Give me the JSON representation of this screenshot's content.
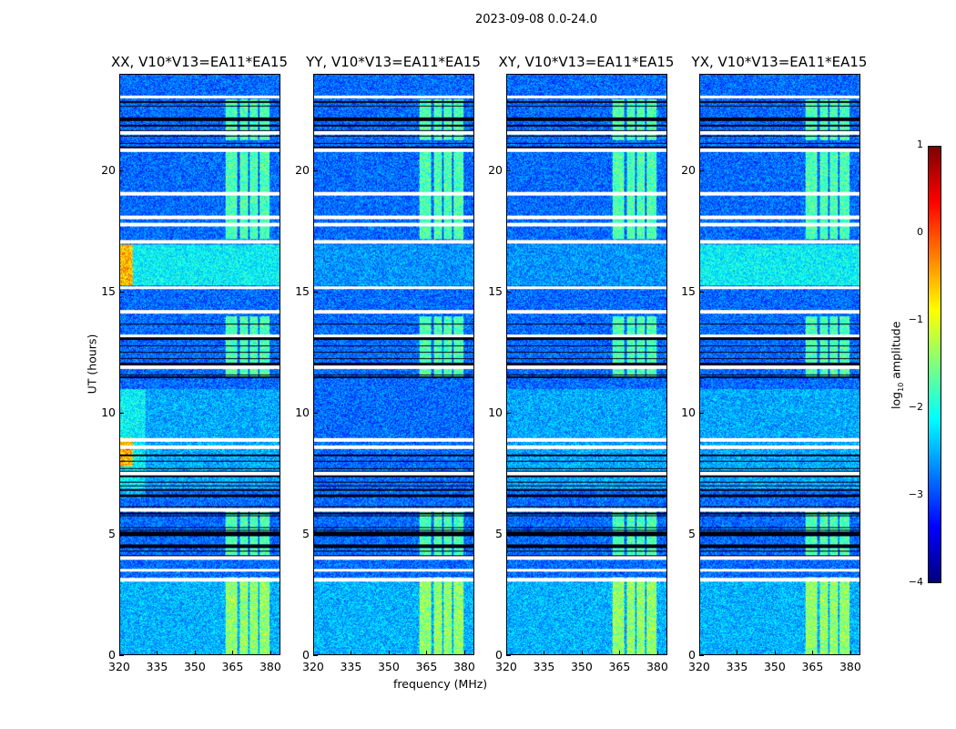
{
  "chart_data": {
    "type": "heatmap",
    "suptitle": "2023-09-08 0.0-24.0",
    "xlabel": "frequency (MHz)",
    "ylabel": "UT (hours)",
    "xlim": [
      320,
      384
    ],
    "ylim": [
      0,
      24
    ],
    "xticks": [
      "320",
      "335",
      "350",
      "365",
      "380"
    ],
    "xtick_values": [
      320,
      335,
      350,
      365,
      380
    ],
    "yticks": [
      "0",
      "5",
      "10",
      "15",
      "20"
    ],
    "ytick_values": [
      0,
      5,
      10,
      15,
      20
    ],
    "panels": [
      {
        "title": "XX, V10*V13=EA11*EA15",
        "strong_low_band": true
      },
      {
        "title": "YY, V10*V13=EA11*EA15",
        "strong_low_band": false
      },
      {
        "title": "XY, V10*V13=EA11*EA15",
        "strong_low_band": false
      },
      {
        "title": "YX, V10*V13=EA11*EA15",
        "strong_low_band": false
      }
    ],
    "colorbar": {
      "label": "log10 amplitude",
      "label_main": "log",
      "label_sub": "10",
      "label_tail": " amplitude",
      "range": [
        -4,
        1
      ],
      "ticks": [
        "1",
        "0",
        "−1",
        "−2",
        "−3",
        "−4"
      ],
      "tick_values": [
        1,
        0,
        -1,
        -2,
        -3,
        -4
      ],
      "colormap": "jet"
    },
    "flagged_hours": [
      23.1,
      21.6,
      20.9,
      19.1,
      18.1,
      17.8,
      17.1,
      15.2,
      14.2,
      13.2,
      11.9,
      8.9,
      8.6,
      7.5,
      6.0,
      4.0,
      3.5,
      3.1
    ],
    "rfi_bands_mhz": [
      [
        362,
        367
      ],
      [
        368,
        371
      ],
      [
        372,
        375
      ],
      [
        376,
        380
      ]
    ]
  }
}
